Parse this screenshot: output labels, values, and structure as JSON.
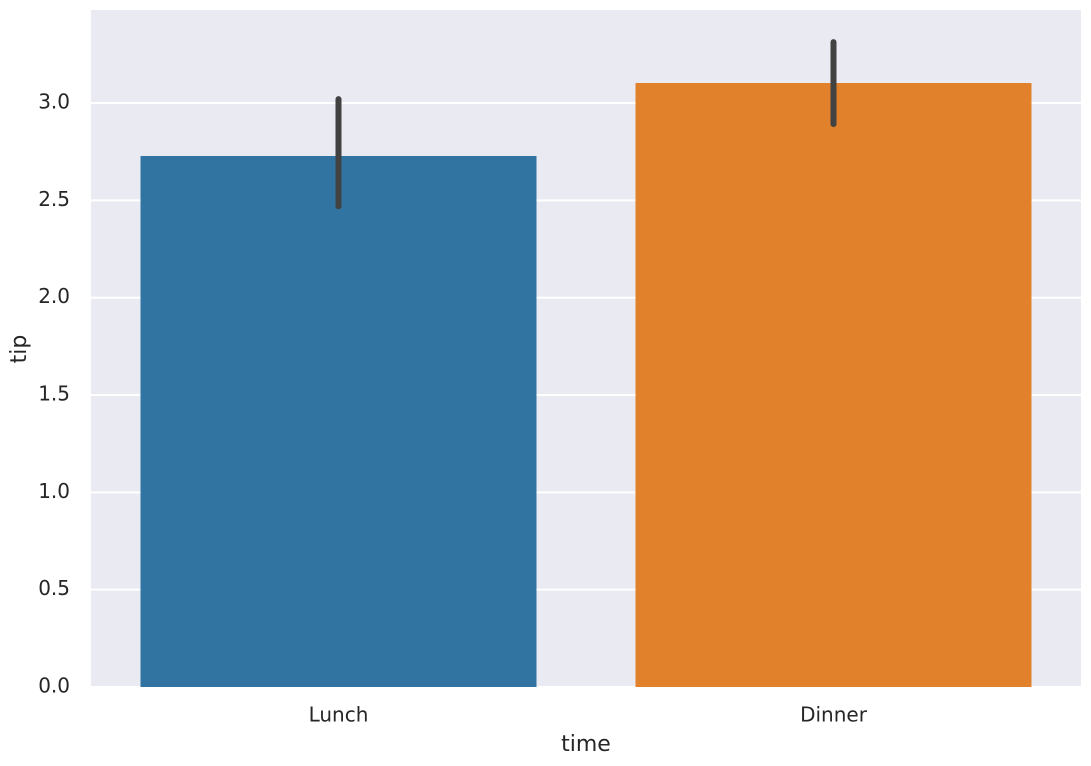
{
  "chart_data": {
    "type": "bar",
    "xlabel": "time",
    "ylabel": "tip",
    "categories": [
      "Lunch",
      "Dinner"
    ],
    "values": [
      2.728,
      3.103
    ],
    "ci_low": [
      2.47,
      2.892
    ],
    "ci_high": [
      3.02,
      3.313
    ],
    "colors": [
      "#3274a1",
      "#e1812c"
    ],
    "ylim": [
      0,
      3.478
    ],
    "yticks": [
      {
        "value": 0,
        "label": "0.0"
      },
      0.5,
      {
        "value": 1,
        "label": "1.0"
      },
      1.5,
      {
        "value": 2,
        "label": "2.0"
      },
      2.5,
      {
        "value": 3,
        "label": "3.0"
      }
    ],
    "grid": true
  }
}
